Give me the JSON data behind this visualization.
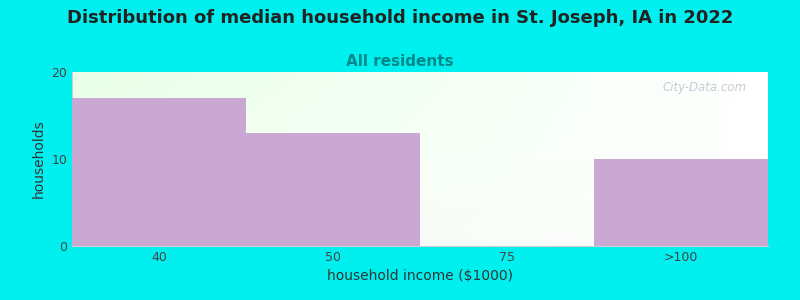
{
  "title": "Distribution of median household income in St. Joseph, IA in 2022",
  "subtitle": "All residents",
  "xlabel": "household income ($1000)",
  "ylabel": "households",
  "categories": [
    "40",
    "50",
    "75",
    ">100"
  ],
  "values": [
    17,
    13,
    0,
    10
  ],
  "bar_colors": [
    "#c9a8d4",
    "#c9a8d4",
    "#d4ecd8",
    "#c9a8d4"
  ],
  "background_color": "#00f0f0",
  "ylim": [
    0,
    20
  ],
  "yticks": [
    0,
    10,
    20
  ],
  "title_fontsize": 13,
  "subtitle_fontsize": 11,
  "title_color": "#222222",
  "subtitle_color": "#008888",
  "axis_label_fontsize": 10,
  "tick_fontsize": 9,
  "watermark": "City-Data.com",
  "grad_top_color": "#eaf7ec",
  "grad_bottom_color": "#ffffff"
}
